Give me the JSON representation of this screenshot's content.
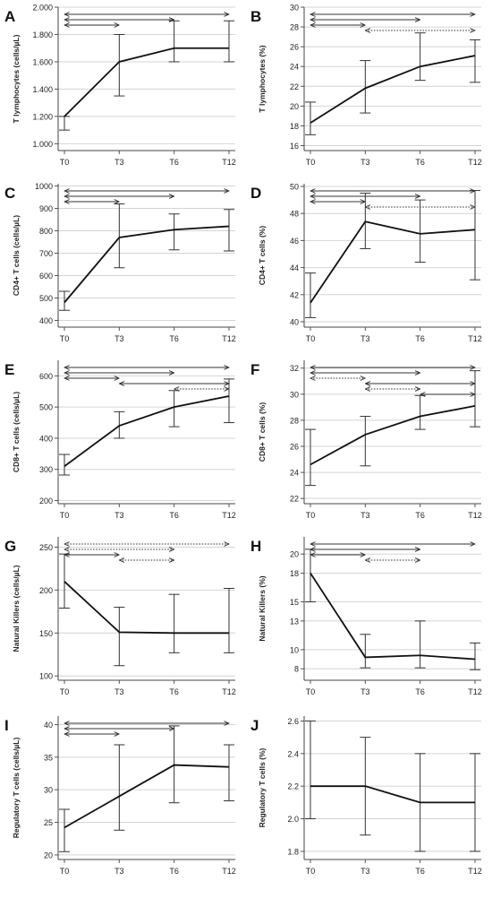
{
  "figure": {
    "title": ""
  },
  "chart_data": [
    {
      "letter": "A",
      "type": "line",
      "ylabel": "T lymphocytes (cells/µL)",
      "categories": [
        "T0",
        "T3",
        "T6",
        "T12"
      ],
      "values": [
        1200,
        1600,
        1700,
        1700
      ],
      "errors": [
        [
          1100,
          1200
        ],
        [
          1350,
          1800
        ],
        [
          1600,
          1900
        ],
        [
          1600,
          1900
        ]
      ],
      "ylim": [
        950,
        2000
      ],
      "yticks": [
        1000,
        1200,
        1400,
        1600,
        1800,
        2000
      ],
      "ytick_labels": [
        "1.000",
        "1.200",
        "1.400",
        "1.600",
        "1.800",
        "2.000"
      ],
      "grid": true,
      "comparisons": [
        {
          "from": "T0",
          "to": "T12",
          "style": "solid"
        },
        {
          "from": "T0",
          "to": "T6",
          "style": "solid"
        },
        {
          "from": "T0",
          "to": "T3",
          "style": "solid"
        }
      ]
    },
    {
      "letter": "B",
      "type": "line",
      "ylabel": "T lymphocytes (%)",
      "categories": [
        "T0",
        "T3",
        "T6",
        "T12"
      ],
      "values": [
        18.3,
        21.8,
        24.0,
        25.1
      ],
      "errors": [
        [
          17.1,
          20.4
        ],
        [
          19.3,
          24.6
        ],
        [
          22.6,
          27.4
        ],
        [
          22.4,
          26.7
        ]
      ],
      "ylim": [
        15.5,
        30
      ],
      "yticks": [
        16,
        18,
        20,
        22,
        24,
        26,
        28,
        30
      ],
      "ytick_labels": [
        "16",
        "18",
        "20",
        "22",
        "24",
        "26",
        "28",
        "30"
      ],
      "grid": true,
      "comparisons": [
        {
          "from": "T0",
          "to": "T12",
          "style": "solid"
        },
        {
          "from": "T0",
          "to": "T6",
          "style": "solid"
        },
        {
          "from": "T0",
          "to": "T3",
          "style": "solid"
        },
        {
          "from": "T3",
          "to": "T12",
          "style": "dotted"
        }
      ]
    },
    {
      "letter": "C",
      "type": "line",
      "ylabel": "CD4+ T cells (cells/µL)",
      "categories": [
        "T0",
        "T3",
        "T6",
        "T12"
      ],
      "values": [
        480,
        770,
        805,
        820
      ],
      "errors": [
        [
          445,
          530
        ],
        [
          635,
          920
        ],
        [
          715,
          875
        ],
        [
          710,
          895
        ]
      ],
      "ylim": [
        370,
        1010
      ],
      "yticks": [
        400,
        500,
        600,
        700,
        800,
        900,
        1000
      ],
      "ytick_labels": [
        "400",
        "500",
        "600",
        "700",
        "800",
        "900",
        "1000"
      ],
      "grid": true,
      "comparisons": [
        {
          "from": "T0",
          "to": "T12",
          "style": "solid"
        },
        {
          "from": "T0",
          "to": "T6",
          "style": "solid"
        },
        {
          "from": "T0",
          "to": "T3",
          "style": "solid"
        }
      ]
    },
    {
      "letter": "D",
      "type": "line",
      "ylabel": "CD4+ T cells (%)",
      "categories": [
        "T0",
        "T3",
        "T6",
        "T12"
      ],
      "values": [
        41.4,
        47.4,
        46.5,
        46.8
      ],
      "errors": [
        [
          40.3,
          43.6
        ],
        [
          45.4,
          49.5
        ],
        [
          44.4,
          49.0
        ],
        [
          43.1,
          49.7
        ]
      ],
      "ylim": [
        39.6,
        50.2
      ],
      "yticks": [
        40,
        42,
        44,
        46,
        48,
        50
      ],
      "ytick_labels": [
        "40",
        "42",
        "44",
        "46",
        "48",
        "50"
      ],
      "grid": true,
      "comparisons": [
        {
          "from": "T0",
          "to": "T12",
          "style": "solid"
        },
        {
          "from": "T0",
          "to": "T6",
          "style": "solid"
        },
        {
          "from": "T0",
          "to": "T3",
          "style": "solid"
        },
        {
          "from": "T3",
          "to": "T12",
          "style": "dotted"
        }
      ]
    },
    {
      "letter": "E",
      "type": "line",
      "ylabel": "CD8+ T cells (cells/µL)",
      "categories": [
        "T0",
        "T3",
        "T6",
        "T12"
      ],
      "values": [
        310,
        440,
        500,
        535
      ],
      "errors": [
        [
          282,
          348
        ],
        [
          400,
          485
        ],
        [
          437,
          553
        ],
        [
          450,
          590
        ]
      ],
      "ylim": [
        190,
        650
      ],
      "yticks": [
        200,
        300,
        400,
        500,
        600
      ],
      "ytick_labels": [
        "200",
        "300",
        "400",
        "500",
        "600"
      ],
      "grid": true,
      "comparisons": [
        {
          "from": "T0",
          "to": "T12",
          "style": "solid"
        },
        {
          "from": "T0",
          "to": "T6",
          "style": "solid"
        },
        {
          "from": "T0",
          "to": "T3",
          "style": "solid"
        },
        {
          "from": "T3",
          "to": "T12",
          "style": "solid"
        },
        {
          "from": "T6",
          "to": "T12",
          "style": "dotted"
        }
      ]
    },
    {
      "letter": "F",
      "type": "line",
      "ylabel": "CD8+ T cells (%)",
      "categories": [
        "T0",
        "T3",
        "T6",
        "T12"
      ],
      "values": [
        24.6,
        26.9,
        28.3,
        29.1
      ],
      "errors": [
        [
          23.0,
          27.3
        ],
        [
          24.5,
          28.3
        ],
        [
          27.3,
          29.9
        ],
        [
          27.5,
          31.8
        ]
      ],
      "ylim": [
        21.6,
        32.6
      ],
      "yticks": [
        22,
        24,
        26,
        28,
        30,
        32
      ],
      "ytick_labels": [
        "22",
        "24",
        "26",
        "28",
        "30",
        "32"
      ],
      "grid": true,
      "comparisons": [
        {
          "from": "T0",
          "to": "T12",
          "style": "solid"
        },
        {
          "from": "T0",
          "to": "T6",
          "style": "solid"
        },
        {
          "from": "T0",
          "to": "T3",
          "style": "dotted"
        },
        {
          "from": "T3",
          "to": "T12",
          "style": "solid"
        },
        {
          "from": "T3",
          "to": "T6",
          "style": "dotted"
        },
        {
          "from": "T6",
          "to": "T12",
          "style": "solid"
        }
      ]
    },
    {
      "letter": "G",
      "type": "line",
      "ylabel": "Natural Killers (cells/µL)",
      "categories": [
        "T0",
        "T3",
        "T6",
        "T12"
      ],
      "values": [
        210,
        151,
        150,
        150
      ],
      "errors": [
        [
          179,
          242
        ],
        [
          112,
          180
        ],
        [
          127,
          195
        ],
        [
          127,
          202
        ]
      ],
      "ylim": [
        95,
        262
      ],
      "yticks": [
        100,
        150,
        200,
        250
      ],
      "ytick_labels": [
        "100",
        "150",
        "200",
        "250"
      ],
      "grid": true,
      "comparisons": [
        {
          "from": "T0",
          "to": "T12",
          "style": "dotted"
        },
        {
          "from": "T0",
          "to": "T6",
          "style": "dotted"
        },
        {
          "from": "T0",
          "to": "T3",
          "style": "solid"
        },
        {
          "from": "T3",
          "to": "T6",
          "style": "dotted"
        }
      ]
    },
    {
      "letter": "H",
      "type": "line",
      "ylabel": "Natural Killers (%)",
      "categories": [
        "T0",
        "T3",
        "T6",
        "T12"
      ],
      "values": [
        18.0,
        9.2,
        9.4,
        9.0
      ],
      "errors": [
        [
          15.0,
          20.5
        ],
        [
          8.1,
          11.6
        ],
        [
          8.1,
          13.0
        ],
        [
          7.9,
          10.7
        ]
      ],
      "ylim": [
        6.8,
        21.8
      ],
      "yticks": [
        8,
        10,
        13,
        15,
        18,
        20
      ],
      "ytick_labels": [
        "8",
        "10",
        "13",
        "15",
        "18",
        "20"
      ],
      "grid": true,
      "comparisons": [
        {
          "from": "T0",
          "to": "T12",
          "style": "solid"
        },
        {
          "from": "T0",
          "to": "T6",
          "style": "solid"
        },
        {
          "from": "T0",
          "to": "T3",
          "style": "solid"
        },
        {
          "from": "T3",
          "to": "T6",
          "style": "dotted"
        }
      ]
    },
    {
      "letter": "I",
      "type": "line",
      "ylabel": "Regulatory T cells (cells/µL)",
      "categories": [
        "T0",
        "T3",
        "T6",
        "T12"
      ],
      "values": [
        24.2,
        29.0,
        33.8,
        33.5
      ],
      "errors": [
        [
          20.5,
          27.0
        ],
        [
          23.8,
          36.9
        ],
        [
          28.0,
          39.8
        ],
        [
          28.3,
          36.9
        ]
      ],
      "ylim": [
        19.3,
        41.3
      ],
      "yticks": [
        20,
        25,
        30,
        35,
        40
      ],
      "ytick_labels": [
        "20",
        "25",
        "30",
        "35",
        "40"
      ],
      "grid": true,
      "comparisons": [
        {
          "from": "T0",
          "to": "T12",
          "style": "solid"
        },
        {
          "from": "T0",
          "to": "T6",
          "style": "solid"
        },
        {
          "from": "T0",
          "to": "T3",
          "style": "solid"
        }
      ]
    },
    {
      "letter": "J",
      "type": "line",
      "ylabel": "Regulatory T cells (%)",
      "categories": [
        "T0",
        "T3",
        "T6",
        "T12"
      ],
      "values": [
        2.2,
        2.2,
        2.1,
        2.1
      ],
      "errors": [
        [
          2.0,
          2.6
        ],
        [
          1.9,
          2.5
        ],
        [
          1.8,
          2.4
        ],
        [
          1.8,
          2.4
        ]
      ],
      "ylim": [
        1.75,
        2.63
      ],
      "yticks": [
        1.8,
        2.0,
        2.2,
        2.4,
        2.6
      ],
      "ytick_labels": [
        "1.8",
        "2.0",
        "2.2",
        "2.4",
        "2.6"
      ],
      "grid": true,
      "comparisons": []
    }
  ]
}
